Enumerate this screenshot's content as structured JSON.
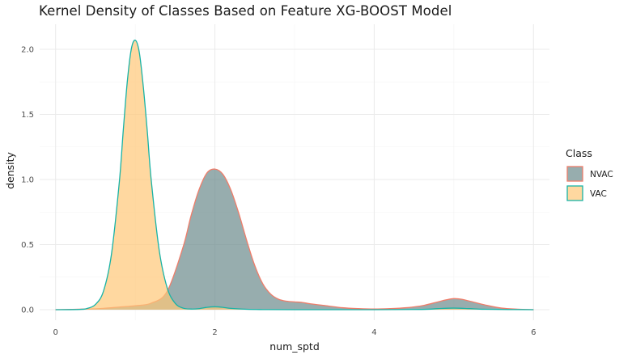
{
  "chart_data": {
    "type": "area",
    "title": "Kernel Density of Classes Based on Feature XG-BOOST Model",
    "xlabel": "num_sptd",
    "ylabel": "density",
    "xlim": [
      -0.2,
      6.2
    ],
    "ylim": [
      0,
      2.1
    ],
    "x_ticks": [
      "0",
      "2",
      "4",
      "6"
    ],
    "x_tick_values": [
      0,
      2,
      4,
      6
    ],
    "y_ticks": [
      "0.0",
      "0.5",
      "1.0",
      "1.5",
      "2.0"
    ],
    "y_tick_values": [
      0,
      0.5,
      1.0,
      1.5,
      2.0
    ],
    "grid": true,
    "legend": {
      "title": "Class",
      "position": "right"
    },
    "series": [
      {
        "name": "NVAC",
        "fill": "#6b8a8c",
        "stroke": "#ef7d6a",
        "x": [
          0,
          0.4,
          0.6,
          0.8,
          1.0,
          1.2,
          1.4,
          1.6,
          1.7,
          1.8,
          1.9,
          2.0,
          2.1,
          2.2,
          2.3,
          2.4,
          2.5,
          2.6,
          2.7,
          2.8,
          2.9,
          3.0,
          3.1,
          3.2,
          3.4,
          3.6,
          3.8,
          4.0,
          4.2,
          4.4,
          4.6,
          4.8,
          4.9,
          5.0,
          5.1,
          5.2,
          5.4,
          5.6,
          5.8,
          6.0
        ],
        "y": [
          0.0,
          0.005,
          0.01,
          0.02,
          0.03,
          0.05,
          0.14,
          0.48,
          0.72,
          0.92,
          1.05,
          1.08,
          1.04,
          0.92,
          0.74,
          0.53,
          0.34,
          0.2,
          0.12,
          0.08,
          0.065,
          0.06,
          0.055,
          0.045,
          0.03,
          0.015,
          0.008,
          0.005,
          0.008,
          0.015,
          0.03,
          0.06,
          0.075,
          0.085,
          0.08,
          0.065,
          0.035,
          0.012,
          0.004,
          0.0
        ]
      },
      {
        "name": "VAC",
        "fill": "#ffc878",
        "stroke": "#18b3a6",
        "x": [
          0,
          0.3,
          0.4,
          0.5,
          0.6,
          0.7,
          0.8,
          0.85,
          0.9,
          0.95,
          1.0,
          1.05,
          1.1,
          1.15,
          1.2,
          1.3,
          1.4,
          1.5,
          1.6,
          1.7,
          1.8,
          1.9,
          2.0,
          2.1,
          2.2,
          2.4,
          2.6,
          3.0,
          4.0,
          4.6,
          4.8,
          5.0,
          5.2,
          5.4,
          6.0
        ],
        "y": [
          0.0,
          0.002,
          0.01,
          0.04,
          0.14,
          0.42,
          0.98,
          1.38,
          1.75,
          2.0,
          2.07,
          1.98,
          1.72,
          1.38,
          1.0,
          0.46,
          0.17,
          0.05,
          0.012,
          0.005,
          0.008,
          0.018,
          0.022,
          0.018,
          0.01,
          0.003,
          0.001,
          0.0,
          0.0,
          0.002,
          0.008,
          0.012,
          0.008,
          0.003,
          0.0
        ]
      }
    ]
  }
}
